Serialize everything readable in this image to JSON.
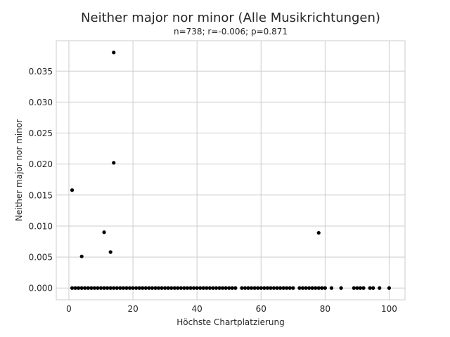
{
  "chart_data": {
    "type": "scatter",
    "title": "Neither major nor minor (Alle Musikrichtungen)",
    "subtitle": "n=738; r=-0.006; p=0.871",
    "xlabel": "Höchste Chartplatzierung",
    "ylabel": "Neither major nor minor",
    "xlim": [
      -3.95,
      104.95
    ],
    "ylim": [
      -0.0019,
      0.0399
    ],
    "xticks": [
      0,
      20,
      40,
      60,
      80,
      100
    ],
    "xtick_labels": [
      "0",
      "20",
      "40",
      "60",
      "80",
      "100"
    ],
    "yticks": [
      0.0,
      0.005,
      0.01,
      0.015,
      0.02,
      0.025,
      0.03,
      0.035
    ],
    "ytick_labels": [
      "0.000",
      "0.005",
      "0.010",
      "0.015",
      "0.020",
      "0.025",
      "0.030",
      "0.035"
    ],
    "grid": true,
    "marker_color": "#000000",
    "points": [
      {
        "x": 14,
        "y": 0.038
      },
      {
        "x": 14,
        "y": 0.0202
      },
      {
        "x": 1,
        "y": 0.0158
      },
      {
        "x": 11,
        "y": 0.009
      },
      {
        "x": 78,
        "y": 0.0089
      },
      {
        "x": 13,
        "y": 0.0058
      },
      {
        "x": 4,
        "y": 0.0051
      },
      {
        "x": 1,
        "y": 0
      },
      {
        "x": 2,
        "y": 0
      },
      {
        "x": 3,
        "y": 0
      },
      {
        "x": 4,
        "y": 0
      },
      {
        "x": 5,
        "y": 0
      },
      {
        "x": 6,
        "y": 0
      },
      {
        "x": 7,
        "y": 0
      },
      {
        "x": 8,
        "y": 0
      },
      {
        "x": 9,
        "y": 0
      },
      {
        "x": 10,
        "y": 0
      },
      {
        "x": 11,
        "y": 0
      },
      {
        "x": 12,
        "y": 0
      },
      {
        "x": 13,
        "y": 0
      },
      {
        "x": 14,
        "y": 0
      },
      {
        "x": 15,
        "y": 0
      },
      {
        "x": 16,
        "y": 0
      },
      {
        "x": 17,
        "y": 0
      },
      {
        "x": 18,
        "y": 0
      },
      {
        "x": 19,
        "y": 0
      },
      {
        "x": 20,
        "y": 0
      },
      {
        "x": 21,
        "y": 0
      },
      {
        "x": 22,
        "y": 0
      },
      {
        "x": 23,
        "y": 0
      },
      {
        "x": 24,
        "y": 0
      },
      {
        "x": 25,
        "y": 0
      },
      {
        "x": 26,
        "y": 0
      },
      {
        "x": 27,
        "y": 0
      },
      {
        "x": 28,
        "y": 0
      },
      {
        "x": 29,
        "y": 0
      },
      {
        "x": 30,
        "y": 0
      },
      {
        "x": 31,
        "y": 0
      },
      {
        "x": 32,
        "y": 0
      },
      {
        "x": 33,
        "y": 0
      },
      {
        "x": 34,
        "y": 0
      },
      {
        "x": 35,
        "y": 0
      },
      {
        "x": 36,
        "y": 0
      },
      {
        "x": 37,
        "y": 0
      },
      {
        "x": 38,
        "y": 0
      },
      {
        "x": 39,
        "y": 0
      },
      {
        "x": 40,
        "y": 0
      },
      {
        "x": 41,
        "y": 0
      },
      {
        "x": 42,
        "y": 0
      },
      {
        "x": 43,
        "y": 0
      },
      {
        "x": 44,
        "y": 0
      },
      {
        "x": 45,
        "y": 0
      },
      {
        "x": 46,
        "y": 0
      },
      {
        "x": 47,
        "y": 0
      },
      {
        "x": 48,
        "y": 0
      },
      {
        "x": 49,
        "y": 0
      },
      {
        "x": 50,
        "y": 0
      },
      {
        "x": 51,
        "y": 0
      },
      {
        "x": 52,
        "y": 0
      },
      {
        "x": 54,
        "y": 0
      },
      {
        "x": 55,
        "y": 0
      },
      {
        "x": 56,
        "y": 0
      },
      {
        "x": 57,
        "y": 0
      },
      {
        "x": 58,
        "y": 0
      },
      {
        "x": 59,
        "y": 0
      },
      {
        "x": 60,
        "y": 0
      },
      {
        "x": 61,
        "y": 0
      },
      {
        "x": 62,
        "y": 0
      },
      {
        "x": 63,
        "y": 0
      },
      {
        "x": 64,
        "y": 0
      },
      {
        "x": 65,
        "y": 0
      },
      {
        "x": 66,
        "y": 0
      },
      {
        "x": 67,
        "y": 0
      },
      {
        "x": 68,
        "y": 0
      },
      {
        "x": 69,
        "y": 0
      },
      {
        "x": 70,
        "y": 0
      },
      {
        "x": 72,
        "y": 0
      },
      {
        "x": 73,
        "y": 0
      },
      {
        "x": 74,
        "y": 0
      },
      {
        "x": 75,
        "y": 0
      },
      {
        "x": 76,
        "y": 0
      },
      {
        "x": 77,
        "y": 0
      },
      {
        "x": 78,
        "y": 0
      },
      {
        "x": 79,
        "y": 0
      },
      {
        "x": 80,
        "y": 0
      },
      {
        "x": 82,
        "y": 0
      },
      {
        "x": 85,
        "y": 0
      },
      {
        "x": 89,
        "y": 0
      },
      {
        "x": 90,
        "y": 0
      },
      {
        "x": 91,
        "y": 0
      },
      {
        "x": 92,
        "y": 0
      },
      {
        "x": 94,
        "y": 0
      },
      {
        "x": 95,
        "y": 0
      },
      {
        "x": 97,
        "y": 0
      },
      {
        "x": 100,
        "y": 0
      }
    ]
  }
}
